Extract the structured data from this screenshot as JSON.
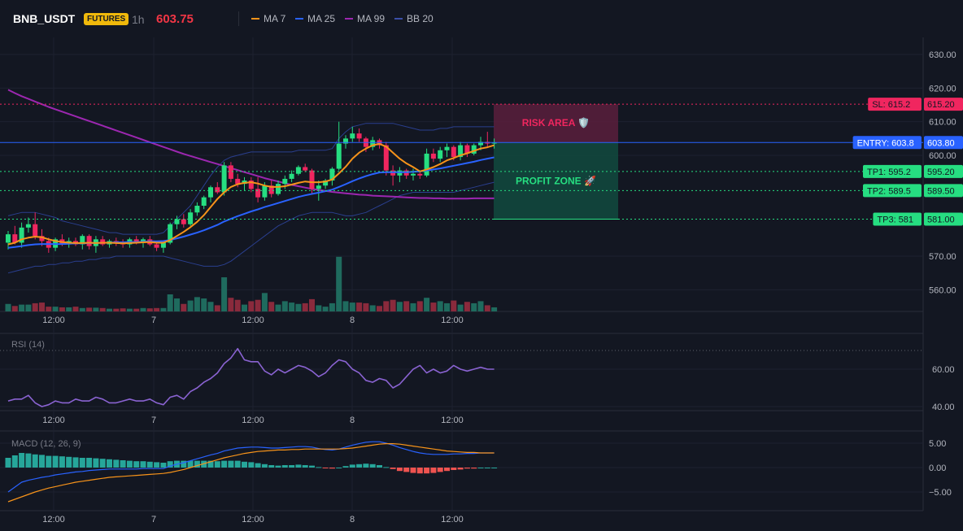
{
  "header": {
    "symbol": "BNB_USDT",
    "badge": "FUTURES",
    "interval": "1h",
    "last_price": "603.75",
    "legend": [
      {
        "label": "MA 7",
        "color": "#f7931a"
      },
      {
        "label": "MA 25",
        "color": "#2962ff"
      },
      {
        "label": "MA 99",
        "color": "#9c27b0"
      },
      {
        "label": "BB 20",
        "color": "#2a3f8f"
      }
    ]
  },
  "colors": {
    "background": "#131722",
    "grid": "#1e2230",
    "up": "#26de81",
    "down": "#f0265f",
    "volume_up": "#1f6b5e",
    "volume_down": "#8a2a3c",
    "rsi": "#8a63d2",
    "macd": "#2962ff",
    "signal": "#f7931a",
    "hist_up": "#26a69a",
    "hist_down": "#ef5350"
  },
  "x_axis": {
    "ticks": [
      "12:00",
      "7",
      "12:00",
      "8",
      "12:00"
    ]
  },
  "price_pane": {
    "y_ticks": [
      "630.00",
      "620.00",
      "610.00",
      "600.00",
      "570.00",
      "560.00"
    ],
    "levels": [
      {
        "tag": "SL: 615.2",
        "price_label": "615.20",
        "value": 615.2,
        "color": "#f0265f",
        "line": "dotted"
      },
      {
        "tag": "ENTRY: 603.8",
        "price_label": "603.80",
        "value": 603.8,
        "color": "#2962ff",
        "line": "solid"
      },
      {
        "tag": "TP1: 595.2",
        "price_label": "595.20",
        "value": 595.2,
        "color": "#26de81",
        "line": "dotted"
      },
      {
        "tag": "TP2: 589.5",
        "price_label": "589.50",
        "value": 589.5,
        "color": "#26de81",
        "line": "dotted"
      },
      {
        "tag": "TP3: 581",
        "price_label": "581.00",
        "value": 581.0,
        "color": "#26de81",
        "line": "dotted"
      }
    ],
    "risk_label": "RISK AREA 🛡️",
    "profit_label": "PROFIT ZONE 🚀"
  },
  "rsi_pane": {
    "label": "RSI (14)",
    "y_ticks": [
      "60.00",
      "40.00"
    ],
    "overbought": 70
  },
  "macd_pane": {
    "label": "MACD (12, 26, 9)",
    "y_ticks": [
      "5.00",
      "0.00",
      "−5.00"
    ]
  },
  "chart_data": {
    "type": "candlestick",
    "title": "BNB_USDT FUTURES 1h",
    "y_range": [
      555,
      634
    ],
    "candles": [
      {
        "o": 574.0,
        "h": 577.5,
        "l": 572.0,
        "c": 576.5
      },
      {
        "o": 576.5,
        "h": 579.0,
        "l": 573.5,
        "c": 574.0
      },
      {
        "o": 574.0,
        "h": 580.0,
        "l": 572.5,
        "c": 578.5
      },
      {
        "o": 578.5,
        "h": 581.5,
        "l": 577.0,
        "c": 579.5
      },
      {
        "o": 579.5,
        "h": 583.0,
        "l": 575.0,
        "c": 576.0
      },
      {
        "o": 576.0,
        "h": 578.0,
        "l": 573.0,
        "c": 574.5
      },
      {
        "o": 574.5,
        "h": 575.5,
        "l": 571.0,
        "c": 572.5
      },
      {
        "o": 572.5,
        "h": 575.5,
        "l": 571.5,
        "c": 575.0
      },
      {
        "o": 575.0,
        "h": 576.5,
        "l": 573.0,
        "c": 573.5
      },
      {
        "o": 573.5,
        "h": 575.5,
        "l": 572.5,
        "c": 574.5
      },
      {
        "o": 574.5,
        "h": 575.5,
        "l": 573.0,
        "c": 573.5
      },
      {
        "o": 573.5,
        "h": 576.5,
        "l": 572.0,
        "c": 576.0
      },
      {
        "o": 576.0,
        "h": 576.5,
        "l": 572.0,
        "c": 573.0
      },
      {
        "o": 573.0,
        "h": 576.0,
        "l": 571.0,
        "c": 575.0
      },
      {
        "o": 575.0,
        "h": 576.0,
        "l": 573.0,
        "c": 573.5
      },
      {
        "o": 573.5,
        "h": 575.0,
        "l": 572.5,
        "c": 574.5
      },
      {
        "o": 574.5,
        "h": 575.5,
        "l": 573.0,
        "c": 574.0
      },
      {
        "o": 574.0,
        "h": 575.0,
        "l": 572.5,
        "c": 573.5
      },
      {
        "o": 573.5,
        "h": 575.5,
        "l": 572.5,
        "c": 575.0
      },
      {
        "o": 575.0,
        "h": 576.0,
        "l": 573.5,
        "c": 574.0
      },
      {
        "o": 574.0,
        "h": 575.5,
        "l": 572.5,
        "c": 575.0
      },
      {
        "o": 575.0,
        "h": 576.0,
        "l": 573.0,
        "c": 573.5
      },
      {
        "o": 573.5,
        "h": 574.5,
        "l": 571.5,
        "c": 572.5
      },
      {
        "o": 572.5,
        "h": 574.5,
        "l": 571.0,
        "c": 574.0
      },
      {
        "o": 574.0,
        "h": 580.0,
        "l": 573.5,
        "c": 579.5
      },
      {
        "o": 579.5,
        "h": 582.0,
        "l": 578.0,
        "c": 581.0
      },
      {
        "o": 581.0,
        "h": 582.5,
        "l": 578.5,
        "c": 579.5
      },
      {
        "o": 579.5,
        "h": 584.0,
        "l": 579.0,
        "c": 583.0
      },
      {
        "o": 583.0,
        "h": 586.0,
        "l": 582.0,
        "c": 585.0
      },
      {
        "o": 585.0,
        "h": 588.0,
        "l": 584.0,
        "c": 587.5
      },
      {
        "o": 587.5,
        "h": 591.0,
        "l": 586.0,
        "c": 590.5
      },
      {
        "o": 590.5,
        "h": 592.0,
        "l": 588.5,
        "c": 589.0
      },
      {
        "o": 589.0,
        "h": 598.0,
        "l": 588.0,
        "c": 597.0
      },
      {
        "o": 597.0,
        "h": 598.0,
        "l": 592.0,
        "c": 593.0
      },
      {
        "o": 593.0,
        "h": 594.5,
        "l": 590.5,
        "c": 591.5
      },
      {
        "o": 591.5,
        "h": 593.5,
        "l": 589.5,
        "c": 592.5
      },
      {
        "o": 592.5,
        "h": 593.5,
        "l": 589.0,
        "c": 590.0
      },
      {
        "o": 590.0,
        "h": 593.5,
        "l": 586.0,
        "c": 587.5
      },
      {
        "o": 587.5,
        "h": 592.0,
        "l": 586.5,
        "c": 591.0
      },
      {
        "o": 591.0,
        "h": 592.5,
        "l": 587.5,
        "c": 588.5
      },
      {
        "o": 588.5,
        "h": 592.5,
        "l": 588.0,
        "c": 591.5
      },
      {
        "o": 591.5,
        "h": 594.0,
        "l": 590.0,
        "c": 593.0
      },
      {
        "o": 593.0,
        "h": 595.5,
        "l": 592.0,
        "c": 594.5
      },
      {
        "o": 594.5,
        "h": 597.0,
        "l": 594.0,
        "c": 596.5
      },
      {
        "o": 596.5,
        "h": 597.5,
        "l": 595.0,
        "c": 595.5
      },
      {
        "o": 595.5,
        "h": 596.0,
        "l": 588.5,
        "c": 590.0
      },
      {
        "o": 590.0,
        "h": 592.5,
        "l": 586.5,
        "c": 591.0
      },
      {
        "o": 591.0,
        "h": 593.0,
        "l": 590.0,
        "c": 592.5
      },
      {
        "o": 592.5,
        "h": 596.5,
        "l": 591.0,
        "c": 596.0
      },
      {
        "o": 596.0,
        "h": 610.0,
        "l": 595.5,
        "c": 603.5
      },
      {
        "o": 603.5,
        "h": 606.0,
        "l": 602.0,
        "c": 605.0
      },
      {
        "o": 605.0,
        "h": 608.5,
        "l": 604.0,
        "c": 606.5
      },
      {
        "o": 606.5,
        "h": 608.0,
        "l": 604.0,
        "c": 605.0
      },
      {
        "o": 605.0,
        "h": 605.5,
        "l": 601.0,
        "c": 602.5
      },
      {
        "o": 602.5,
        "h": 605.5,
        "l": 601.5,
        "c": 604.5
      },
      {
        "o": 604.5,
        "h": 605.0,
        "l": 602.0,
        "c": 603.0
      },
      {
        "o": 603.0,
        "h": 604.0,
        "l": 594.0,
        "c": 595.5
      },
      {
        "o": 595.5,
        "h": 597.0,
        "l": 591.0,
        "c": 594.0
      },
      {
        "o": 594.0,
        "h": 596.5,
        "l": 592.0,
        "c": 595.5
      },
      {
        "o": 595.5,
        "h": 596.0,
        "l": 593.0,
        "c": 594.0
      },
      {
        "o": 594.0,
        "h": 596.0,
        "l": 592.5,
        "c": 594.5
      },
      {
        "o": 594.5,
        "h": 595.5,
        "l": 593.0,
        "c": 594.0
      },
      {
        "o": 594.0,
        "h": 602.0,
        "l": 593.5,
        "c": 600.5
      },
      {
        "o": 600.5,
        "h": 602.0,
        "l": 598.0,
        "c": 599.0
      },
      {
        "o": 599.0,
        "h": 602.5,
        "l": 598.0,
        "c": 601.5
      },
      {
        "o": 601.5,
        "h": 603.5,
        "l": 599.5,
        "c": 602.5
      },
      {
        "o": 602.5,
        "h": 603.0,
        "l": 598.5,
        "c": 599.5
      },
      {
        "o": 599.5,
        "h": 604.0,
        "l": 598.5,
        "c": 603.0
      },
      {
        "o": 603.0,
        "h": 603.5,
        "l": 599.5,
        "c": 600.5
      },
      {
        "o": 600.5,
        "h": 603.5,
        "l": 600.0,
        "c": 603.0
      },
      {
        "o": 603.0,
        "h": 605.5,
        "l": 601.5,
        "c": 604.0
      },
      {
        "o": 604.0,
        "h": 607.0,
        "l": 602.5,
        "c": 603.5
      },
      {
        "o": 603.5,
        "h": 605.0,
        "l": 602.0,
        "c": 603.75
      }
    ],
    "volume": [
      22,
      16,
      20,
      20,
      24,
      26,
      14,
      14,
      12,
      12,
      14,
      10,
      11,
      11,
      10,
      8,
      8,
      9,
      8,
      8,
      10,
      9,
      10,
      10,
      50,
      38,
      22,
      32,
      42,
      38,
      28,
      18,
      100,
      40,
      34,
      20,
      30,
      34,
      54,
      28,
      20,
      30,
      26,
      22,
      24,
      36,
      18,
      14,
      24,
      160,
      30,
      26,
      26,
      24,
      18,
      16,
      30,
      34,
      28,
      30,
      24,
      30,
      40,
      26,
      30,
      24,
      32,
      20,
      28,
      24,
      30,
      18,
      12
    ],
    "ma7": [
      573.5,
      574,
      575,
      575.5,
      575.8,
      575.6,
      575.0,
      574.5,
      574.2,
      574.0,
      573.9,
      573.9,
      574.0,
      573.9,
      574.0,
      574.0,
      573.9,
      573.8,
      573.9,
      574.0,
      574.1,
      574.2,
      574.0,
      574.0,
      574.8,
      576.0,
      577.2,
      578.6,
      580.2,
      582.2,
      584.6,
      587.0,
      589.0,
      590.6,
      591.4,
      591.8,
      592.0,
      591.6,
      591.0,
      590.6,
      590.6,
      590.8,
      591.3,
      591.8,
      592.2,
      592.0,
      592.0,
      592.2,
      592.8,
      594.6,
      596.6,
      599.0,
      600.8,
      602.0,
      603.0,
      603.4,
      602.6,
      600.8,
      599.0,
      597.6,
      596.5,
      595.2,
      595.8,
      596.5,
      597.4,
      598.5,
      599.2,
      600.0,
      600.6,
      601.3,
      602.0,
      602.4,
      603.0
    ],
    "ma25": [
      572.5,
      572.7,
      573.0,
      573.3,
      573.5,
      573.6,
      573.6,
      573.6,
      573.6,
      573.7,
      573.8,
      573.8,
      573.9,
      573.9,
      574.0,
      574.0,
      574.1,
      574.1,
      574.2,
      574.2,
      574.3,
      574.4,
      574.4,
      574.5,
      574.8,
      575.3,
      575.8,
      576.4,
      577.0,
      577.7,
      578.5,
      579.3,
      580.3,
      581.1,
      581.9,
      582.6,
      583.3,
      583.9,
      584.6,
      585.2,
      585.8,
      586.4,
      587.0,
      587.6,
      588.1,
      588.5,
      588.9,
      589.3,
      589.8,
      590.6,
      591.4,
      592.3,
      593.1,
      593.8,
      594.4,
      594.9,
      595.0,
      595.0,
      595.0,
      595.0,
      595.1,
      595.2,
      595.5,
      595.8,
      596.1,
      596.5,
      596.9,
      597.3,
      597.7,
      598.1,
      598.6,
      599.0,
      599.4
    ],
    "ma99": [
      619.5,
      618.5,
      617.6,
      616.8,
      616.0,
      615.2,
      614.4,
      613.7,
      613.0,
      612.3,
      611.6,
      610.9,
      610.2,
      609.5,
      608.8,
      608.1,
      607.4,
      606.7,
      606.0,
      605.3,
      604.6,
      603.9,
      603.2,
      602.5,
      601.8,
      601.1,
      600.4,
      599.8,
      599.2,
      598.6,
      598.0,
      597.4,
      596.8,
      596.2,
      595.6,
      595.0,
      594.4,
      593.8,
      593.2,
      592.7,
      592.2,
      591.7,
      591.2,
      590.8,
      590.4,
      590.0,
      589.7,
      589.4,
      589.1,
      588.9,
      588.7,
      588.5,
      588.3,
      588.2,
      588.0,
      587.9,
      587.8,
      587.7,
      587.6,
      587.5,
      587.4,
      587.3,
      587.3,
      587.2,
      587.2,
      587.1,
      587.1,
      587.1,
      587.1,
      587.2,
      587.2,
      587.2,
      587.2
    ],
    "bb_upper": [
      582,
      582.5,
      583,
      583,
      583,
      582.5,
      582,
      581.5,
      580.5,
      580,
      579.5,
      579,
      578.5,
      578,
      577.5,
      577,
      577,
      576.5,
      576.5,
      576.5,
      576.5,
      576.5,
      576.5,
      577,
      579,
      581,
      583,
      585,
      588,
      591,
      594,
      596.5,
      598.5,
      599.5,
      600,
      600.5,
      601,
      601,
      601,
      601,
      601,
      601,
      601,
      601.5,
      601.5,
      601.5,
      601.5,
      601.5,
      602,
      605,
      607,
      608.5,
      609,
      609.5,
      609.5,
      609.5,
      609.5,
      609.5,
      609,
      608.5,
      608,
      607.5,
      607.5,
      607.5,
      608,
      608,
      608.5,
      608.5,
      608.5,
      608.5,
      608.5,
      608.5,
      608.5
    ],
    "bb_lower": [
      565,
      565.5,
      566,
      566.5,
      567,
      567,
      567.5,
      567.5,
      568,
      568,
      568.5,
      568.5,
      569,
      569,
      569.5,
      569.5,
      570,
      570,
      570,
      570,
      570,
      570,
      570,
      570,
      569.5,
      569,
      568.5,
      568,
      567.5,
      567,
      567,
      567,
      567.5,
      568.5,
      570,
      571.5,
      573,
      574.5,
      576,
      577.5,
      579,
      580,
      581,
      582,
      582.5,
      583,
      583,
      583,
      583,
      582.5,
      582,
      582,
      582.5,
      583,
      584,
      585,
      586,
      587,
      588,
      588.5,
      589,
      589,
      589,
      589,
      589,
      589,
      589,
      589.5,
      590,
      590.5,
      591,
      591.5,
      592
    ],
    "rsi": [
      43,
      44,
      44,
      46,
      42,
      40,
      41,
      43,
      42,
      42,
      44,
      43,
      43,
      45,
      44,
      42,
      42,
      43,
      44,
      43,
      43,
      44,
      42,
      41,
      45,
      46,
      44,
      48,
      50,
      53,
      55,
      58,
      63,
      66,
      71,
      65,
      64,
      64,
      59,
      57,
      60,
      58,
      60,
      62,
      61,
      59,
      56,
      58,
      62,
      65,
      64,
      60,
      58,
      54,
      53,
      55,
      54,
      50,
      52,
      56,
      60,
      62,
      58,
      60,
      58,
      59,
      62,
      60,
      59,
      60,
      61,
      60,
      60
    ],
    "macd": [
      -5,
      -4,
      -3,
      -2.6,
      -2.3,
      -2,
      -1.8,
      -1.5,
      -1.3,
      -1.1,
      -0.9,
      -0.8,
      -0.6,
      -0.5,
      -0.4,
      -0.3,
      -0.3,
      -0.3,
      -0.3,
      -0.3,
      -0.2,
      -0.2,
      -0.2,
      -0.2,
      0.3,
      0.7,
      1,
      1.4,
      1.8,
      2.2,
      2.6,
      2.9,
      3.4,
      3.7,
      4,
      4.1,
      4.2,
      4.2,
      4.1,
      4,
      4,
      4.1,
      4.2,
      4.3,
      4.3,
      4.2,
      3.9,
      3.7,
      3.6,
      3.8,
      4.2,
      4.6,
      4.9,
      5.2,
      5.3,
      5.3,
      5,
      4.6,
      4.1,
      3.7,
      3.3,
      3,
      2.8,
      2.7,
      2.7,
      2.7,
      2.8,
      2.8,
      2.9,
      2.9,
      3,
      3,
      3
    ],
    "signal": [
      -7,
      -6.5,
      -6,
      -5.5,
      -5,
      -4.6,
      -4.2,
      -3.9,
      -3.6,
      -3.3,
      -3,
      -2.8,
      -2.6,
      -2.4,
      -2.2,
      -2,
      -1.9,
      -1.8,
      -1.7,
      -1.6,
      -1.5,
      -1.4,
      -1.3,
      -1.2,
      -1,
      -0.7,
      -0.4,
      0,
      0.4,
      0.8,
      1.2,
      1.6,
      2,
      2.3,
      2.6,
      2.9,
      3.1,
      3.3,
      3.4,
      3.5,
      3.6,
      3.6,
      3.7,
      3.7,
      3.8,
      3.8,
      3.8,
      3.8,
      3.8,
      3.8,
      3.9,
      4,
      4.2,
      4.4,
      4.6,
      4.8,
      4.9,
      4.9,
      4.8,
      4.6,
      4.4,
      4.2,
      4,
      3.8,
      3.6,
      3.4,
      3.3,
      3.2,
      3.1,
      3.1,
      3,
      3,
      3
    ]
  }
}
